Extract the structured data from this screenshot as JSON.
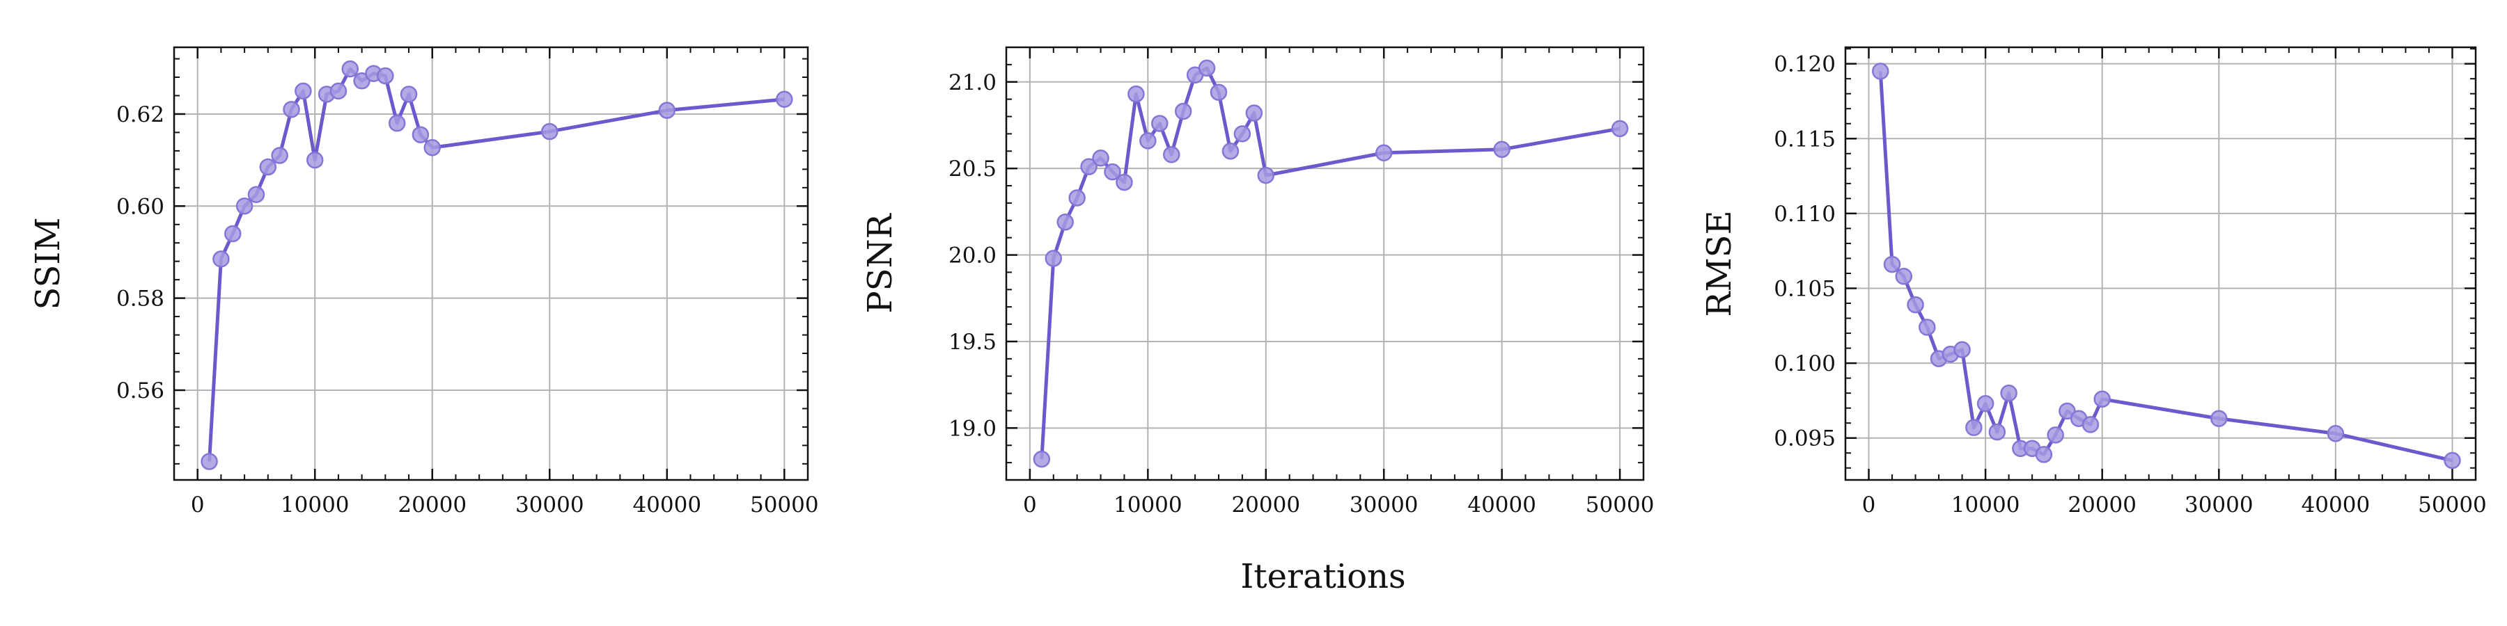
{
  "figure": {
    "xlabel": "Iterations"
  },
  "colors": {
    "line": "#6a5acd",
    "marker_fill": "#a99be2",
    "marker_edge": "#8475d6",
    "grid": "#b3b3b3",
    "axis": "#111111"
  },
  "chart_data": [
    {
      "type": "line",
      "ylabel": "SSIM",
      "xlabel": "",
      "xlim": [
        -2000,
        52000
      ],
      "ylim": [
        0.5405,
        0.6345
      ],
      "xticks": [
        0,
        10000,
        20000,
        30000,
        40000,
        50000
      ],
      "yticks": [
        0.56,
        0.58,
        0.6,
        0.62
      ],
      "ytick_labels": [
        "0.56",
        "0.58",
        "0.60",
        "0.62"
      ],
      "grid": true,
      "x": [
        1000,
        2000,
        3000,
        4000,
        5000,
        6000,
        7000,
        8000,
        9000,
        10000,
        11000,
        12000,
        13000,
        14000,
        15000,
        16000,
        17000,
        18000,
        19000,
        20000,
        30000,
        40000,
        50000
      ],
      "y": [
        0.5445,
        0.5885,
        0.594,
        0.6,
        0.6025,
        0.6085,
        0.611,
        0.621,
        0.625,
        0.61,
        0.6243,
        0.625,
        0.6298,
        0.6272,
        0.6288,
        0.6283,
        0.618,
        0.6243,
        0.6155,
        0.6127,
        0.6162,
        0.6208,
        0.6232
      ]
    },
    {
      "type": "line",
      "ylabel": "PSNR",
      "xlabel": "",
      "xlim": [
        -2000,
        52000
      ],
      "ylim": [
        18.7,
        21.2
      ],
      "xticks": [
        0,
        10000,
        20000,
        30000,
        40000,
        50000
      ],
      "yticks": [
        19.0,
        19.5,
        20.0,
        20.5,
        21.0
      ],
      "ytick_labels": [
        "19.0",
        "19.5",
        "20.0",
        "20.5",
        "21.0"
      ],
      "grid": true,
      "x": [
        1000,
        2000,
        3000,
        4000,
        5000,
        6000,
        7000,
        8000,
        9000,
        10000,
        11000,
        12000,
        13000,
        14000,
        15000,
        16000,
        17000,
        18000,
        19000,
        20000,
        30000,
        40000,
        50000
      ],
      "y": [
        18.82,
        19.98,
        20.19,
        20.33,
        20.51,
        20.56,
        20.48,
        20.42,
        20.93,
        20.66,
        20.76,
        20.58,
        20.83,
        21.04,
        21.08,
        20.94,
        20.6,
        20.7,
        20.82,
        20.46,
        20.59,
        20.61,
        20.73
      ]
    },
    {
      "type": "line",
      "ylabel": "RMSE",
      "xlabel": "",
      "xlim": [
        -2000,
        52000
      ],
      "ylim": [
        0.0922,
        0.1211
      ],
      "xticks": [
        0,
        10000,
        20000,
        30000,
        40000,
        50000
      ],
      "yticks": [
        0.095,
        0.1,
        0.105,
        0.11,
        0.115,
        0.12
      ],
      "ytick_labels": [
        "0.095",
        "0.100",
        "0.105",
        "0.110",
        "0.115",
        "0.120"
      ],
      "grid": true,
      "x": [
        1000,
        2000,
        3000,
        4000,
        5000,
        6000,
        7000,
        8000,
        9000,
        10000,
        11000,
        12000,
        13000,
        14000,
        15000,
        16000,
        17000,
        18000,
        19000,
        20000,
        30000,
        40000,
        50000
      ],
      "y": [
        0.1195,
        0.1066,
        0.1058,
        0.1039,
        0.1024,
        0.1003,
        0.1006,
        0.1009,
        0.0957,
        0.0973,
        0.0954,
        0.098,
        0.0943,
        0.0943,
        0.0939,
        0.0952,
        0.0968,
        0.0963,
        0.0959,
        0.0976,
        0.0963,
        0.0953,
        0.0935
      ]
    }
  ]
}
